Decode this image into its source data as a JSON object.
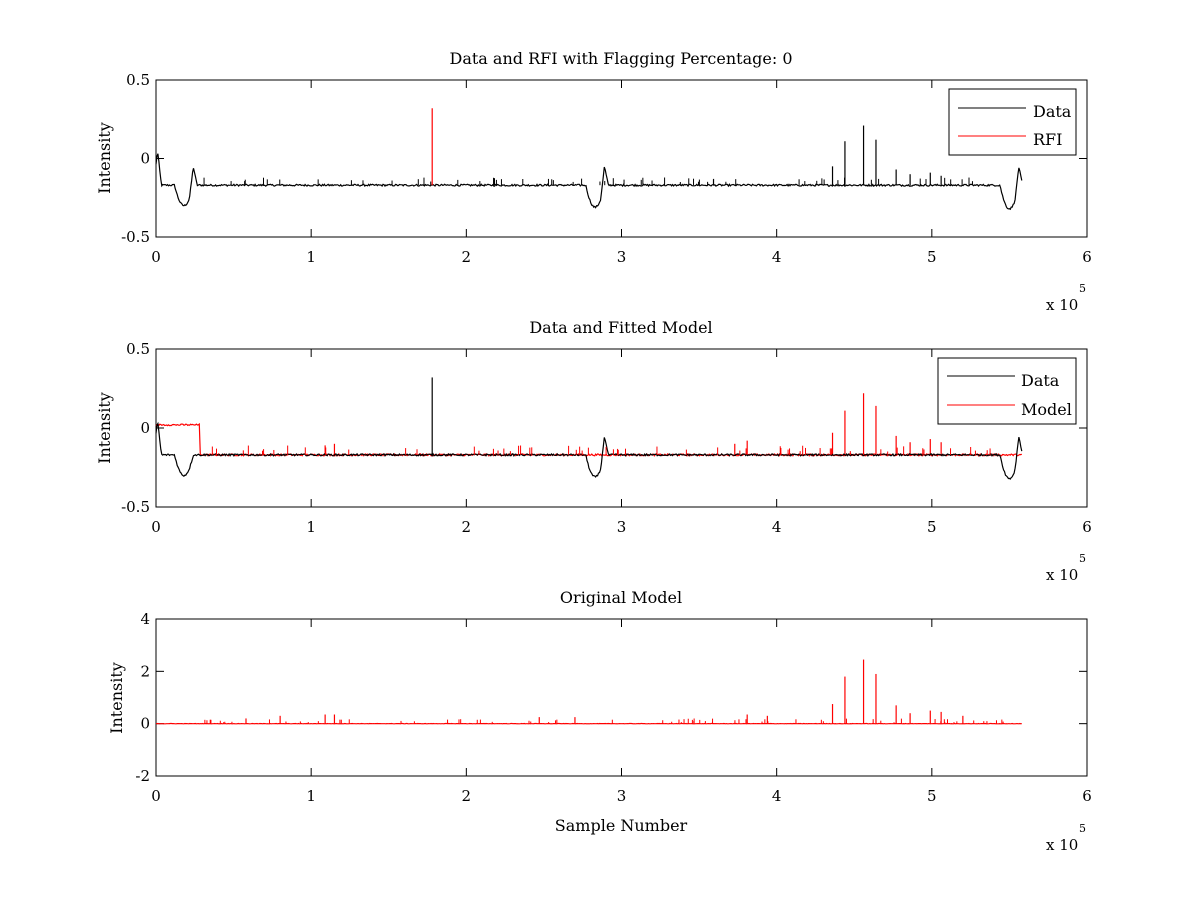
{
  "figure": {
    "background": "#ffffff"
  },
  "chart_data": [
    {
      "type": "line",
      "title": "Data and RFI with Flagging Percentage: 0",
      "xlabel": "",
      "ylabel": "Intensity",
      "xlim": [
        0,
        6
      ],
      "ylim": [
        -0.5,
        0.5
      ],
      "xticks": [
        "0",
        "1",
        "2",
        "3",
        "4",
        "5",
        "6"
      ],
      "yticks": [
        "-0.5",
        "0",
        "0.5"
      ],
      "x_exponent_base": "x 10",
      "x_exponent_power": "5",
      "grid": false,
      "legend_position": "top-right",
      "series": [
        {
          "name": "Data",
          "color": "#000000",
          "baseline": -0.17,
          "x_end": 5.58,
          "dips": [
            [
              0.18,
              -0.3
            ],
            [
              2.83,
              -0.31
            ],
            [
              5.5,
              -0.32
            ]
          ],
          "bumps": [
            [
              0.01,
              0.05
            ],
            [
              0.24,
              -0.05
            ],
            [
              2.89,
              -0.05
            ],
            [
              5.56,
              -0.05
            ]
          ],
          "spikes": [
            [
              4.36,
              -0.05
            ],
            [
              4.44,
              0.11
            ],
            [
              4.56,
              0.21
            ],
            [
              4.64,
              0.12
            ],
            [
              4.77,
              -0.07
            ],
            [
              4.86,
              -0.1
            ],
            [
              4.99,
              -0.09
            ],
            [
              5.06,
              -0.11
            ]
          ]
        },
        {
          "name": "RFI",
          "color": "#ff0000",
          "spikes": [
            [
              1.78,
              0.32
            ]
          ]
        }
      ]
    },
    {
      "type": "line",
      "title": "Data and Fitted Model",
      "xlabel": "",
      "ylabel": "Intensity",
      "xlim": [
        0,
        6
      ],
      "ylim": [
        -0.5,
        0.5
      ],
      "xticks": [
        "0",
        "1",
        "2",
        "3",
        "4",
        "5",
        "6"
      ],
      "yticks": [
        "-0.5",
        "0",
        "0.5"
      ],
      "x_exponent_base": "x 10",
      "x_exponent_power": "5",
      "grid": false,
      "legend_position": "top-right",
      "series": [
        {
          "name": "Data",
          "color": "#000000",
          "baseline": -0.17,
          "x_end": 5.58,
          "dips": [
            [
              0.18,
              -0.3
            ],
            [
              2.83,
              -0.31
            ],
            [
              5.5,
              -0.32
            ]
          ],
          "bumps": [
            [
              0.01,
              0.05
            ],
            [
              2.89,
              -0.05
            ],
            [
              5.56,
              -0.05
            ]
          ],
          "spikes": [
            [
              1.78,
              0.32
            ]
          ]
        },
        {
          "name": "Model",
          "color": "#ff0000",
          "baseline": -0.17,
          "x_end": 5.58,
          "plateau": [
            0.0,
            0.28,
            0.02
          ],
          "spikes": [
            [
              4.36,
              -0.03
            ],
            [
              4.44,
              0.11
            ],
            [
              4.56,
              0.22
            ],
            [
              4.64,
              0.14
            ],
            [
              4.77,
              -0.05
            ],
            [
              4.86,
              -0.09
            ],
            [
              4.99,
              -0.07
            ],
            [
              5.06,
              -0.09
            ],
            [
              1.09,
              -0.11
            ],
            [
              1.15,
              -0.1
            ],
            [
              3.73,
              -0.1
            ],
            [
              3.81,
              -0.08
            ]
          ]
        }
      ]
    },
    {
      "type": "line",
      "title": "Original Model",
      "xlabel": "Sample Number",
      "ylabel": "Intensity",
      "xlim": [
        0,
        6
      ],
      "ylim": [
        -2,
        4
      ],
      "xticks": [
        "0",
        "1",
        "2",
        "3",
        "4",
        "5",
        "6"
      ],
      "yticks": [
        "-2",
        "0",
        "2",
        "4"
      ],
      "x_exponent_base": "x 10",
      "x_exponent_power": "5",
      "grid": false,
      "legend_position": "none",
      "series": [
        {
          "name": "",
          "color": "#ff0000",
          "baseline": 0,
          "x_end": 5.58,
          "spikes": [
            [
              4.36,
              0.75
            ],
            [
              4.44,
              1.8
            ],
            [
              4.56,
              2.45
            ],
            [
              4.64,
              1.9
            ],
            [
              4.77,
              0.7
            ],
            [
              4.86,
              0.4
            ],
            [
              4.99,
              0.5
            ],
            [
              5.06,
              0.45
            ],
            [
              5.2,
              0.3
            ],
            [
              3.81,
              0.35
            ],
            [
              3.94,
              0.3
            ],
            [
              0.8,
              0.3
            ],
            [
              1.09,
              0.35
            ],
            [
              1.15,
              0.35
            ],
            [
              2.47,
              0.25
            ],
            [
              2.7,
              0.25
            ],
            [
              0.58,
              0.2
            ],
            [
              0.35,
              0.15
            ]
          ]
        }
      ]
    }
  ]
}
